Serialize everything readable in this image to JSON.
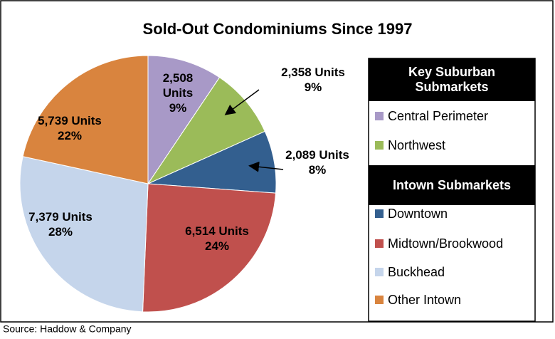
{
  "chart_data": {
    "type": "pie",
    "title": "Sold-Out Condominiums Since 1997",
    "source": "Source:  Haddow & Company",
    "groups": [
      {
        "name": "Key Suburban Submarkets",
        "categories": [
          "Central Perimeter",
          "Northwest"
        ],
        "values": [
          2508,
          2358
        ],
        "value_labels": [
          "2,508 Units",
          "2,358 Units"
        ],
        "percent_labels": [
          "9%",
          "9%"
        ],
        "colors": [
          "#a899c7",
          "#9bbb59"
        ]
      },
      {
        "name": "Intown Submarkets",
        "categories": [
          "Downtown",
          "Midtown/Brookwood",
          "Buckhead",
          "Other Intown"
        ],
        "values": [
          2089,
          6514,
          7379,
          5739
        ],
        "value_labels": [
          "2,089 Units",
          "6,514 Units",
          "7,379 Units",
          "5,739 Units"
        ],
        "percent_labels": [
          "8%",
          "24%",
          "28%",
          "22%"
        ],
        "colors": [
          "#335f8f",
          "#c0504d",
          "#c5d5eb",
          "#d9843e"
        ]
      }
    ]
  }
}
